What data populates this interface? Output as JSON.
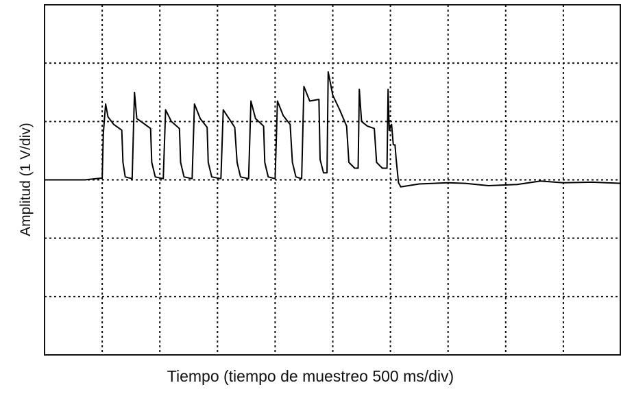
{
  "chart_data": {
    "type": "line",
    "xlabel": "Tiempo (tiempo de muestreo 500 ms/div)",
    "ylabel": "Amplitud (1 V/div)",
    "grid": true,
    "x_unit": "div",
    "y_unit": "div",
    "xlim": [
      0,
      10
    ],
    "ylim": [
      -3,
      3
    ],
    "x_divisions": 10,
    "y_divisions": 6,
    "series": [
      {
        "values": [
          [
            0.0,
            0.0
          ],
          [
            0.7,
            0.0
          ],
          [
            1.0,
            0.03
          ],
          [
            1.02,
            0.8
          ],
          [
            1.06,
            1.3
          ],
          [
            1.1,
            1.08
          ],
          [
            1.2,
            0.95
          ],
          [
            1.34,
            0.85
          ],
          [
            1.36,
            0.3
          ],
          [
            1.4,
            0.05
          ],
          [
            1.52,
            0.02
          ],
          [
            1.56,
            1.5
          ],
          [
            1.6,
            1.05
          ],
          [
            1.7,
            0.98
          ],
          [
            1.84,
            0.88
          ],
          [
            1.86,
            0.3
          ],
          [
            1.92,
            0.05
          ],
          [
            2.06,
            0.02
          ],
          [
            2.1,
            1.2
          ],
          [
            2.2,
            1.0
          ],
          [
            2.34,
            0.88
          ],
          [
            2.36,
            0.3
          ],
          [
            2.42,
            0.05
          ],
          [
            2.56,
            0.02
          ],
          [
            2.6,
            1.3
          ],
          [
            2.7,
            1.05
          ],
          [
            2.82,
            0.9
          ],
          [
            2.84,
            0.3
          ],
          [
            2.9,
            0.05
          ],
          [
            3.06,
            0.02
          ],
          [
            3.1,
            1.2
          ],
          [
            3.2,
            1.05
          ],
          [
            3.3,
            0.9
          ],
          [
            3.34,
            0.3
          ],
          [
            3.4,
            0.05
          ],
          [
            3.54,
            0.02
          ],
          [
            3.58,
            1.35
          ],
          [
            3.66,
            1.05
          ],
          [
            3.8,
            0.92
          ],
          [
            3.82,
            0.3
          ],
          [
            3.88,
            0.05
          ],
          [
            4.0,
            0.02
          ],
          [
            4.04,
            1.35
          ],
          [
            4.14,
            1.1
          ],
          [
            4.26,
            0.95
          ],
          [
            4.3,
            0.3
          ],
          [
            4.36,
            0.05
          ],
          [
            4.46,
            0.02
          ],
          [
            4.5,
            1.6
          ],
          [
            4.6,
            1.35
          ],
          [
            4.76,
            1.38
          ],
          [
            4.78,
            0.35
          ],
          [
            4.84,
            0.12
          ],
          [
            4.9,
            0.12
          ],
          [
            4.92,
            1.85
          ],
          [
            5.0,
            1.45
          ],
          [
            5.12,
            1.2
          ],
          [
            5.24,
            0.92
          ],
          [
            5.28,
            0.3
          ],
          [
            5.38,
            0.2
          ],
          [
            5.44,
            0.2
          ],
          [
            5.46,
            1.55
          ],
          [
            5.5,
            1.0
          ],
          [
            5.6,
            0.92
          ],
          [
            5.72,
            0.88
          ],
          [
            5.76,
            0.3
          ],
          [
            5.86,
            0.2
          ],
          [
            5.94,
            0.2
          ],
          [
            5.96,
            1.55
          ],
          [
            5.98,
            0.85
          ],
          [
            6.02,
            0.95
          ],
          [
            6.05,
            0.6
          ],
          [
            6.08,
            0.6
          ],
          [
            6.1,
            0.35
          ],
          [
            6.14,
            -0.05
          ],
          [
            6.18,
            -0.12
          ],
          [
            6.5,
            -0.07
          ],
          [
            7.0,
            -0.05
          ],
          [
            7.3,
            -0.06
          ],
          [
            7.7,
            -0.1
          ],
          [
            8.2,
            -0.08
          ],
          [
            8.6,
            -0.02
          ],
          [
            9.0,
            -0.05
          ],
          [
            9.5,
            -0.04
          ],
          [
            10.0,
            -0.06
          ]
        ]
      }
    ]
  }
}
